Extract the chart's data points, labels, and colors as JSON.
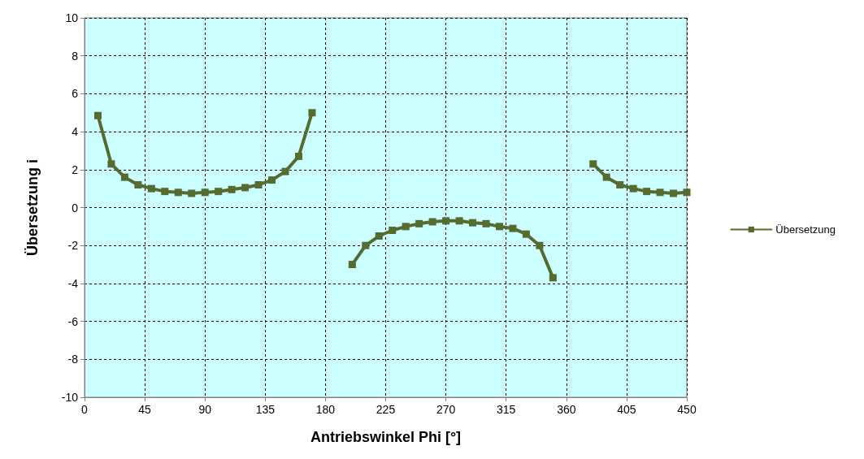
{
  "chart_data": {
    "type": "line",
    "xlabel": "Antriebswinkel Phi [°]",
    "ylabel": "Übersetzung i",
    "x": [
      10,
      20,
      30,
      40,
      50,
      60,
      70,
      80,
      90,
      100,
      110,
      120,
      130,
      140,
      150,
      160,
      170,
      180,
      190,
      200,
      210,
      220,
      230,
      240,
      250,
      260,
      270,
      280,
      290,
      300,
      310,
      320,
      330,
      340,
      350,
      360,
      370,
      380,
      390,
      400,
      410,
      420,
      430,
      440,
      450
    ],
    "series": [
      {
        "name": "Übersetzung",
        "color": "#556b2f",
        "values": [
          4.85,
          2.3,
          1.6,
          1.2,
          1.0,
          0.85,
          0.8,
          0.75,
          0.8,
          0.85,
          0.95,
          1.05,
          1.2,
          1.45,
          1.9,
          2.7,
          5.0,
          null,
          null,
          -3.0,
          -2.0,
          -1.5,
          -1.2,
          -1.0,
          -0.85,
          -0.75,
          -0.7,
          -0.7,
          -0.8,
          -0.85,
          -1.0,
          -1.1,
          -1.4,
          -2.0,
          -3.7,
          null,
          null,
          2.3,
          1.6,
          1.2,
          1.0,
          0.85,
          0.8,
          0.75,
          0.8
        ]
      }
    ],
    "xlim": [
      0,
      450
    ],
    "xticks": [
      0,
      45,
      90,
      135,
      180,
      225,
      270,
      315,
      360,
      405,
      450
    ],
    "ylim": [
      -10,
      10
    ],
    "yticks": [
      -10,
      -8,
      -6,
      -4,
      -2,
      0,
      2,
      4,
      6,
      8,
      10
    ],
    "grid": true,
    "legend": "right",
    "marker": "square",
    "line_style": "solid"
  }
}
